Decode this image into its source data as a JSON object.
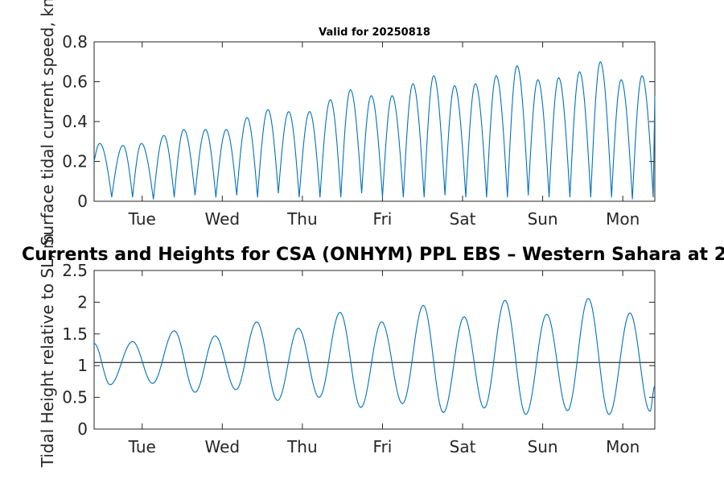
{
  "figure": {
    "suptitle": "Currents and Heights for CSA (ONHYM) PPL EBS  – Western Sahara at 2",
    "subtitle": "Valid for 20250818"
  },
  "colors": {
    "series": "#0072bd",
    "axis": "#262626",
    "refline": "#000000"
  },
  "chart_data": [
    {
      "type": "line",
      "title": "Valid for 20250818",
      "ylabel": "Surface tidal current speed, kn",
      "xlim": [
        0,
        7
      ],
      "ylim": [
        0,
        0.8
      ],
      "yticks": [
        0,
        0.2,
        0.4,
        0.6,
        0.8
      ],
      "ytick_labels": [
        "0",
        "0.2",
        "0.4",
        "0.6",
        "0.8"
      ],
      "xticks": [
        0.6,
        1.6,
        2.6,
        3.6,
        4.6,
        5.6,
        6.6
      ],
      "xtick_labels": [
        "Tue",
        "Wed",
        "Thu",
        "Fri",
        "Sat",
        "Sun",
        "Mon"
      ],
      "grid": false,
      "series": [
        {
          "peaks": [
            [
              0.07,
              0.29
            ],
            [
              0.36,
              0.28
            ],
            [
              0.59,
              0.29
            ],
            [
              0.87,
              0.33
            ],
            [
              1.12,
              0.36
            ],
            [
              1.39,
              0.36
            ],
            [
              1.65,
              0.36
            ],
            [
              1.91,
              0.42
            ],
            [
              2.17,
              0.46
            ],
            [
              2.43,
              0.45
            ],
            [
              2.69,
              0.45
            ],
            [
              2.95,
              0.51
            ],
            [
              3.2,
              0.56
            ],
            [
              3.46,
              0.53
            ],
            [
              3.72,
              0.53
            ],
            [
              3.98,
              0.59
            ],
            [
              4.24,
              0.63
            ],
            [
              4.5,
              0.58
            ],
            [
              4.76,
              0.59
            ],
            [
              5.02,
              0.63
            ],
            [
              5.28,
              0.68
            ],
            [
              5.54,
              0.61
            ],
            [
              5.8,
              0.62
            ],
            [
              6.06,
              0.65
            ],
            [
              6.32,
              0.7
            ],
            [
              6.58,
              0.61
            ],
            [
              6.84,
              0.63
            ]
          ],
          "troughs": [
            [
              0.22,
              0.02
            ],
            [
              0.48,
              0.02
            ],
            [
              0.74,
              0.01
            ],
            [
              1.0,
              0.02
            ],
            [
              1.26,
              0.03
            ],
            [
              1.52,
              0.02
            ],
            [
              1.78,
              0.03
            ],
            [
              2.04,
              0.02
            ],
            [
              2.3,
              0.04
            ],
            [
              2.56,
              0.02
            ],
            [
              2.82,
              0.02
            ],
            [
              3.08,
              0.02
            ],
            [
              3.34,
              0.04
            ],
            [
              3.6,
              0.02
            ],
            [
              3.86,
              0.02
            ],
            [
              4.12,
              0.02
            ],
            [
              4.38,
              0.03
            ],
            [
              4.64,
              0.02
            ],
            [
              4.9,
              0.02
            ],
            [
              5.16,
              0.02
            ],
            [
              5.42,
              0.03
            ],
            [
              5.68,
              0.02
            ],
            [
              5.94,
              0.02
            ],
            [
              6.2,
              0.02
            ],
            [
              6.46,
              0.02
            ],
            [
              6.72,
              0.01
            ],
            [
              6.98,
              0.02
            ]
          ],
          "start": [
            0.0,
            0.2
          ],
          "end": [
            7.0,
            0.53
          ]
        }
      ]
    },
    {
      "type": "line",
      "title": "Currents and Heights for CSA (ONHYM) PPL EBS  – Western Sahara at 2",
      "ylabel": "Tidal Height relative to SL, m",
      "xlim": [
        0,
        7
      ],
      "ylim": [
        0,
        2.5
      ],
      "yticks": [
        0,
        0.5,
        1,
        1.5,
        2,
        2.5
      ],
      "ytick_labels": [
        "0",
        "0.5",
        "1",
        "1.5",
        "2",
        "2.5"
      ],
      "xticks": [
        0.6,
        1.6,
        2.6,
        3.6,
        4.6,
        5.6,
        6.6
      ],
      "xtick_labels": [
        "Tue",
        "Wed",
        "Thu",
        "Fri",
        "Sat",
        "Sun",
        "Mon"
      ],
      "grid": false,
      "reference_line": 1.05,
      "series": [
        {
          "extrema": [
            [
              0.0,
              1.35
            ],
            [
              0.2,
              0.7
            ],
            [
              0.48,
              1.38
            ],
            [
              0.73,
              0.72
            ],
            [
              1.0,
              1.55
            ],
            [
              1.26,
              0.58
            ],
            [
              1.51,
              1.47
            ],
            [
              1.77,
              0.62
            ],
            [
              2.03,
              1.69
            ],
            [
              2.29,
              0.45
            ],
            [
              2.55,
              1.59
            ],
            [
              2.81,
              0.5
            ],
            [
              3.07,
              1.84
            ],
            [
              3.33,
              0.34
            ],
            [
              3.59,
              1.69
            ],
            [
              3.85,
              0.4
            ],
            [
              4.11,
              1.95
            ],
            [
              4.36,
              0.26
            ],
            [
              4.62,
              1.77
            ],
            [
              4.87,
              0.33
            ],
            [
              5.13,
              2.03
            ],
            [
              5.39,
              0.23
            ],
            [
              5.65,
              1.81
            ],
            [
              5.91,
              0.29
            ],
            [
              6.17,
              2.06
            ],
            [
              6.43,
              0.23
            ],
            [
              6.69,
              1.83
            ],
            [
              6.94,
              0.28
            ],
            [
              7.0,
              0.68
            ]
          ]
        }
      ]
    }
  ]
}
